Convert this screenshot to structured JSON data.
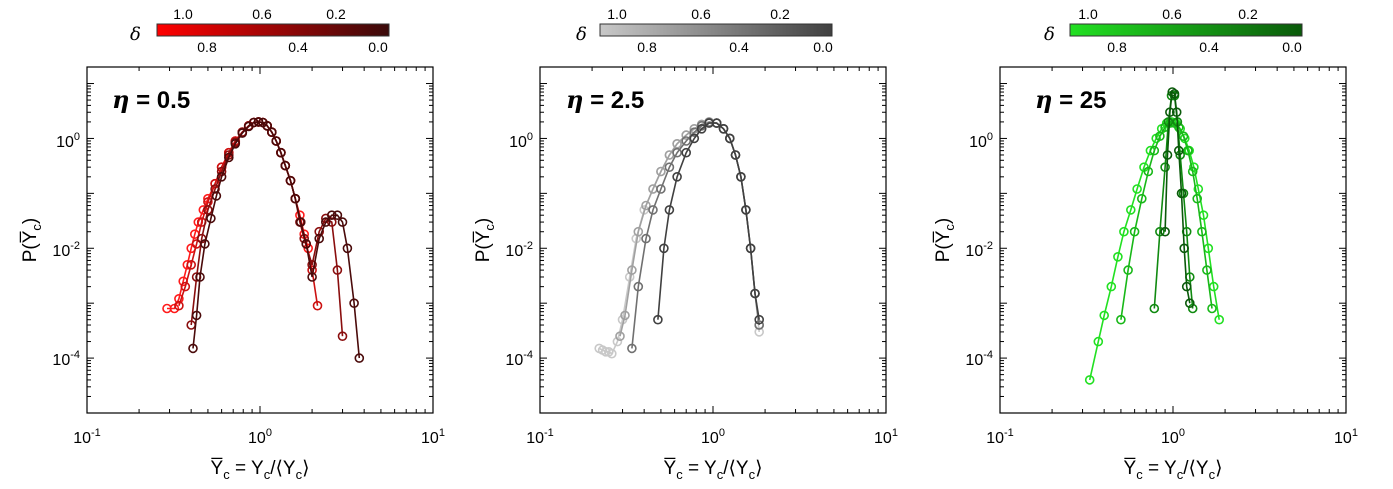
{
  "panels": [
    {
      "eta_text": "η = 0.5",
      "eta_symbol": "η",
      "eta_value": "= 0.5",
      "colorbar": {
        "symbol": "δ",
        "top_ticks": [
          "1.0",
          "0.6",
          "0.2"
        ],
        "bottom_ticks": [
          "0.8",
          "0.4",
          "0.0"
        ],
        "color_start": "#ff0000",
        "color_end": "#3a0a0a"
      }
    },
    {
      "eta_text": "η = 2.5",
      "eta_symbol": "η",
      "eta_value": "= 2.5",
      "colorbar": {
        "symbol": "δ",
        "top_ticks": [
          "1.0",
          "0.6",
          "0.2"
        ],
        "bottom_ticks": [
          "0.8",
          "0.4",
          "0.0"
        ],
        "color_start": "#c8c8c8",
        "color_end": "#404040"
      }
    },
    {
      "eta_text": "η = 25",
      "eta_symbol": "η",
      "eta_value": "= 25",
      "colorbar": {
        "symbol": "δ",
        "top_ticks": [
          "1.0",
          "0.6",
          "0.2"
        ],
        "bottom_ticks": [
          "0.8",
          "0.4",
          "0.0"
        ],
        "color_start": "#22e022",
        "color_end": "#0a5a0a"
      }
    }
  ],
  "axes": {
    "xlabel": "Y̅c = Yc/⟨Yc⟩",
    "ylabel": "P(Y̅c)",
    "x_ticks": [
      "10-1",
      "100",
      "101"
    ],
    "y_ticks": [
      "100",
      "10-2",
      "10-4"
    ]
  },
  "chart_data": [
    {
      "type": "scatter",
      "title": "η = 0.5",
      "xscale": "log",
      "yscale": "log",
      "xlim": [
        0.1,
        10
      ],
      "ylim": [
        1e-05,
        20
      ],
      "xlabel": "Y̅c = Yc/⟨Yc⟩",
      "ylabel": "P(Y̅c)",
      "series": [
        {
          "color": "#ff1a1a",
          "x": [
            0.29,
            0.32,
            0.34,
            0.36,
            0.38,
            0.4,
            0.42,
            0.44,
            0.47,
            0.5,
            0.55,
            0.6,
            0.66,
            0.72,
            0.79,
            0.86,
            0.92,
            0.98,
            1.04,
            1.1,
            1.17,
            1.24,
            1.32,
            1.4,
            1.5,
            1.6,
            1.7,
            1.8,
            1.9
          ],
          "y": [
            0.0008,
            0.0008,
            0.0012,
            0.0025,
            0.005,
            0.01,
            0.018,
            0.03,
            0.05,
            0.08,
            0.15,
            0.3,
            0.55,
            0.9,
            1.3,
            1.7,
            1.95,
            2.0,
            1.95,
            1.7,
            1.3,
            0.9,
            0.55,
            0.32,
            0.17,
            0.08,
            0.04,
            0.018,
            0.01
          ]
        },
        {
          "color": "#cc1111",
          "x": [
            0.34,
            0.37,
            0.4,
            0.43,
            0.46,
            0.5,
            0.55,
            0.6,
            0.66,
            0.72,
            0.79,
            0.86,
            0.92,
            0.98,
            1.04,
            1.1,
            1.17,
            1.24,
            1.32,
            1.4,
            1.5,
            1.6,
            1.72,
            1.85,
            2.0,
            2.15
          ],
          "y": [
            0.0009,
            0.002,
            0.005,
            0.012,
            0.03,
            0.07,
            0.15,
            0.3,
            0.55,
            0.9,
            1.3,
            1.7,
            1.95,
            2.0,
            1.95,
            1.7,
            1.3,
            0.9,
            0.55,
            0.32,
            0.17,
            0.08,
            0.03,
            0.012,
            0.004,
            0.0009
          ]
        },
        {
          "color": "#8a0e0e",
          "x": [
            0.4,
            0.43,
            0.46,
            0.5,
            0.55,
            0.6,
            0.66,
            0.72,
            0.79,
            0.86,
            0.92,
            0.98,
            1.04,
            1.1,
            1.17,
            1.24,
            1.32,
            1.4,
            1.5,
            1.6,
            1.7,
            1.8,
            2.0,
            2.2,
            2.4,
            2.6,
            2.8,
            3.0
          ],
          "y": [
            0.0004,
            0.003,
            0.015,
            0.05,
            0.12,
            0.25,
            0.5,
            0.85,
            1.3,
            1.7,
            1.95,
            2.0,
            1.95,
            1.7,
            1.3,
            0.9,
            0.55,
            0.32,
            0.17,
            0.08,
            0.03,
            0.015,
            0.005,
            0.02,
            0.035,
            0.03,
            0.004,
            0.00025
          ]
        },
        {
          "color": "#4a0a0a",
          "x": [
            0.41,
            0.43,
            0.45,
            0.48,
            0.52,
            0.56,
            0.6,
            0.66,
            0.72,
            0.79,
            0.86,
            0.92,
            0.98,
            1.04,
            1.1,
            1.17,
            1.24,
            1.32,
            1.4,
            1.5,
            1.6,
            1.72,
            1.85,
            2.0,
            2.2,
            2.4,
            2.6,
            2.8,
            3.0,
            3.2,
            3.5,
            3.75
          ],
          "y": [
            0.00015,
            0.0006,
            0.003,
            0.012,
            0.035,
            0.09,
            0.2,
            0.45,
            0.8,
            1.25,
            1.65,
            1.95,
            2.0,
            1.95,
            1.7,
            1.3,
            0.9,
            0.55,
            0.32,
            0.17,
            0.08,
            0.03,
            0.012,
            0.003,
            0.015,
            0.03,
            0.04,
            0.04,
            0.03,
            0.01,
            0.001,
            0.0001
          ]
        }
      ]
    },
    {
      "type": "scatter",
      "title": "η = 2.5",
      "xscale": "log",
      "yscale": "log",
      "xlim": [
        0.1,
        10
      ],
      "ylim": [
        1e-05,
        20
      ],
      "xlabel": "Y̅c = Yc/⟨Yc⟩",
      "ylabel": "P(Y̅c)",
      "series": [
        {
          "color": "#c8c8c8",
          "x": [
            0.22,
            0.23,
            0.24,
            0.25,
            0.26,
            0.28,
            0.3,
            0.33,
            0.36,
            0.4,
            0.45,
            0.5,
            0.56,
            0.62,
            0.7,
            0.78,
            0.86,
            0.95,
            1.05,
            1.15,
            1.25,
            1.35,
            1.45,
            1.55,
            1.65,
            1.75,
            1.85
          ],
          "y": [
            0.00015,
            0.00014,
            0.00013,
            0.00013,
            0.00012,
            0.0002,
            0.0005,
            0.003,
            0.015,
            0.05,
            0.12,
            0.25,
            0.5,
            0.8,
            1.15,
            1.5,
            1.8,
            2.0,
            1.9,
            1.5,
            1.0,
            0.5,
            0.2,
            0.05,
            0.01,
            0.0015,
            0.0003
          ]
        },
        {
          "color": "#a0a0a0",
          "x": [
            0.29,
            0.31,
            0.34,
            0.37,
            0.41,
            0.45,
            0.5,
            0.56,
            0.62,
            0.7,
            0.78,
            0.86,
            0.95,
            1.05,
            1.15,
            1.25,
            1.35,
            1.45,
            1.55,
            1.65,
            1.75,
            1.85
          ],
          "y": [
            0.00025,
            0.0006,
            0.004,
            0.02,
            0.06,
            0.12,
            0.25,
            0.5,
            0.8,
            1.15,
            1.5,
            1.8,
            2.0,
            1.9,
            1.5,
            1.0,
            0.5,
            0.2,
            0.05,
            0.01,
            0.0015,
            0.0004
          ]
        },
        {
          "color": "#707070",
          "x": [
            0.34,
            0.37,
            0.41,
            0.45,
            0.5,
            0.56,
            0.62,
            0.7,
            0.78,
            0.86,
            0.95,
            1.05,
            1.15,
            1.25,
            1.35,
            1.45,
            1.55,
            1.65,
            1.75,
            1.85
          ],
          "y": [
            0.00015,
            0.002,
            0.015,
            0.05,
            0.12,
            0.3,
            0.55,
            0.9,
            1.3,
            1.7,
            1.95,
            1.9,
            1.5,
            1.0,
            0.5,
            0.2,
            0.05,
            0.01,
            0.0015,
            0.0004
          ]
        },
        {
          "color": "#404040",
          "x": [
            0.48,
            0.52,
            0.56,
            0.62,
            0.7,
            0.78,
            0.86,
            0.95,
            1.05,
            1.15,
            1.25,
            1.35,
            1.45,
            1.55,
            1.65,
            1.75,
            1.85
          ],
          "y": [
            0.0005,
            0.01,
            0.05,
            0.2,
            0.55,
            1.0,
            1.5,
            1.9,
            1.9,
            1.5,
            1.0,
            0.5,
            0.2,
            0.05,
            0.01,
            0.0015,
            0.0005
          ]
        }
      ]
    },
    {
      "type": "scatter",
      "title": "η = 25",
      "xscale": "log",
      "yscale": "log",
      "xlim": [
        0.1,
        10
      ],
      "ylim": [
        1e-05,
        20
      ],
      "xlabel": "Y̅c = Yc/⟨Yc⟩",
      "ylabel": "P(Y̅c)",
      "series": [
        {
          "color": "#22e022",
          "x": [
            0.33,
            0.37,
            0.4,
            0.44,
            0.48,
            0.52,
            0.57,
            0.62,
            0.68,
            0.74,
            0.8,
            0.86,
            0.92,
            0.98,
            1.04,
            1.1,
            1.17,
            1.24,
            1.32,
            1.4,
            1.5,
            1.6,
            1.72,
            1.85
          ],
          "y": [
            4e-05,
            0.0002,
            0.0006,
            0.002,
            0.007,
            0.02,
            0.05,
            0.12,
            0.3,
            0.6,
            1.0,
            1.5,
            1.9,
            2.0,
            1.9,
            1.5,
            1.0,
            0.6,
            0.3,
            0.12,
            0.04,
            0.01,
            0.002,
            0.0005
          ]
        },
        {
          "color": "#18b818",
          "x": [
            0.5,
            0.55,
            0.6,
            0.66,
            0.72,
            0.78,
            0.84,
            0.9,
            0.96,
            1.02,
            1.08,
            1.15,
            1.22,
            1.3,
            1.38,
            1.47,
            1.57,
            1.68
          ],
          "y": [
            0.0005,
            0.004,
            0.02,
            0.08,
            0.25,
            0.6,
            1.1,
            1.6,
            1.9,
            1.9,
            1.6,
            1.1,
            0.6,
            0.25,
            0.08,
            0.02,
            0.004,
            0.0008
          ]
        },
        {
          "color": "#108a10",
          "x": [
            0.78,
            0.84,
            0.9,
            0.94,
            0.98,
            1.02,
            1.06,
            1.1,
            1.15,
            1.2,
            1.25,
            1.3
          ],
          "y": [
            0.0008,
            0.02,
            0.3,
            2.0,
            6.0,
            6.0,
            2.0,
            0.5,
            0.1,
            0.02,
            0.003,
            0.0008
          ]
        },
        {
          "color": "#0a5a0a",
          "x": [
            0.9,
            0.93,
            0.96,
            0.99,
            1.02,
            1.05,
            1.08,
            1.12,
            1.16,
            1.2,
            1.25
          ],
          "y": [
            0.02,
            0.5,
            3.0,
            7.0,
            6.5,
            3.0,
            0.6,
            0.1,
            0.01,
            0.002,
            0.001
          ]
        }
      ]
    }
  ]
}
